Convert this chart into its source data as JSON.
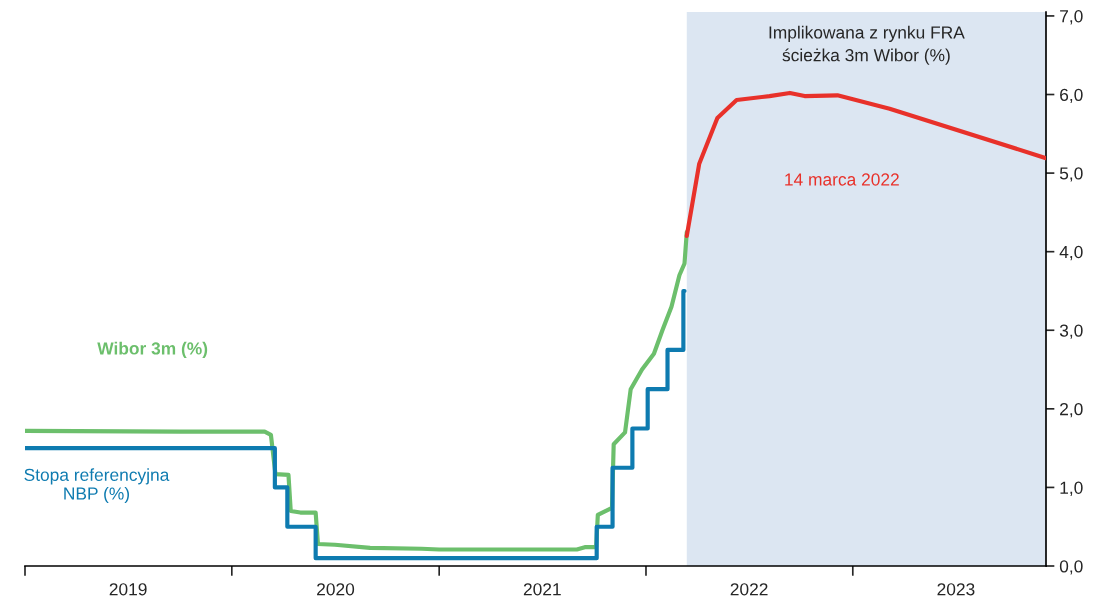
{
  "chart_data": {
    "type": "line",
    "ylim": [
      0,
      7.05
    ],
    "yticks": [
      {
        "value": 0,
        "label": "0,0"
      },
      {
        "value": 1,
        "label": "1,0"
      },
      {
        "value": 2,
        "label": "2,0"
      },
      {
        "value": 3,
        "label": "3,0"
      },
      {
        "value": 4,
        "label": "4,0"
      },
      {
        "value": 5,
        "label": "5,0"
      },
      {
        "value": 6,
        "label": "6,0"
      },
      {
        "value": 7,
        "label": "7,0"
      }
    ],
    "xlim": [
      "2019-01-01",
      "2023-12-08"
    ],
    "xticks": [
      {
        "value": "2019-01-01",
        "label": null
      },
      {
        "value": "2020-01-01",
        "label": null
      },
      {
        "value": "2021-01-01",
        "label": null
      },
      {
        "value": "2022-01-01",
        "label": null
      },
      {
        "value": "2023-01-01",
        "label": null
      },
      {
        "value": "2019-07-02",
        "label": "2019"
      },
      {
        "value": "2020-07-02",
        "label": "2020"
      },
      {
        "value": "2021-07-02",
        "label": "2021"
      },
      {
        "value": "2022-07-02",
        "label": "2022"
      },
      {
        "value": "2023-07-02",
        "label": "2023"
      }
    ],
    "grid": false,
    "legend": false,
    "bands": [
      {
        "axis": "x",
        "from": "2022-03-14",
        "to": "2023-12-08",
        "label": "Implikowana z rynku FRA\nścieżka 3m Wibor (%)",
        "color": "#dce6f2"
      }
    ],
    "series": [
      {
        "name": "Wibor 3m (%)",
        "color": "#6cbf6c",
        "x": [
          "2019-01-01",
          "2019-10-01",
          "2020-02-28",
          "2020-03-10",
          "2020-03-18",
          "2020-04-10",
          "2020-04-14",
          "2020-05-01",
          "2020-05-28",
          "2020-06-01",
          "2020-07-01",
          "2020-09-01",
          "2020-12-01",
          "2021-01-01",
          "2021-09-01",
          "2021-09-15",
          "2021-10-05",
          "2021-10-08",
          "2021-11-02",
          "2021-11-05",
          "2021-11-25",
          "2021-12-05",
          "2021-12-25",
          "2022-01-15",
          "2022-01-30",
          "2022-02-15",
          "2022-03-01",
          "2022-03-10",
          "2022-03-14"
        ],
        "values": [
          1.72,
          1.71,
          1.71,
          1.67,
          1.17,
          1.16,
          0.7,
          0.68,
          0.68,
          0.28,
          0.27,
          0.23,
          0.22,
          0.21,
          0.21,
          0.24,
          0.24,
          0.65,
          0.74,
          1.55,
          1.7,
          2.25,
          2.5,
          2.7,
          3.0,
          3.3,
          3.7,
          3.85,
          4.25
        ]
      },
      {
        "name": "Stopa referencyjna\nNBP (%)",
        "color": "#0e7bb0",
        "type": "step",
        "x": [
          "2019-01-01",
          "2020-03-17",
          "2020-04-08",
          "2020-05-28",
          "2021-10-06",
          "2021-11-03",
          "2021-12-08",
          "2022-01-04",
          "2022-02-08",
          "2022-03-08",
          "2022-03-10"
        ],
        "values": [
          1.5,
          1.0,
          0.5,
          0.1,
          0.5,
          1.25,
          1.75,
          2.25,
          2.75,
          3.5,
          3.5
        ]
      },
      {
        "name": "14 marca 2022",
        "color": "#e8312a",
        "x": [
          "2022-03-14",
          "2022-04-05",
          "2022-05-07",
          "2022-06-10",
          "2022-08-07",
          "2022-09-12",
          "2022-10-08",
          "2022-12-05",
          "2023-03-07",
          "2023-12-08"
        ],
        "values": [
          4.2,
          5.12,
          5.7,
          5.93,
          5.98,
          6.02,
          5.98,
          5.99,
          5.82,
          5.19
        ]
      }
    ]
  }
}
